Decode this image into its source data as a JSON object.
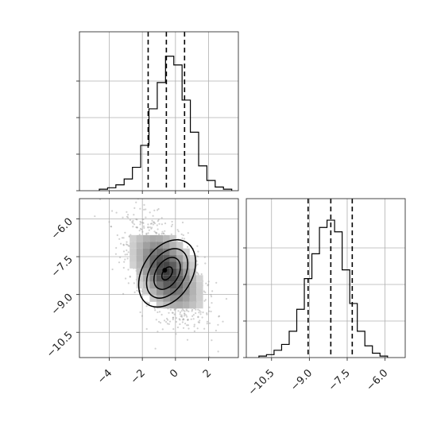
{
  "colors": {
    "line": "#000000",
    "grid": "#b0b0b0",
    "points": "#9a9a9a",
    "density_light": "#d6d6d6",
    "density_mid": "#9c9c9c",
    "density_dark": "#4a4a4a"
  },
  "chart_data": [
    {
      "type": "histogram",
      "panel": "top-left",
      "variable": "x",
      "xlim": [
        -5.8,
        3.8
      ],
      "ylim": [
        0,
        1
      ],
      "bin_edges": [
        -4.6,
        -4.1,
        -3.6,
        -3.1,
        -2.6,
        -2.1,
        -1.6,
        -1.1,
        -0.6,
        -0.1,
        0.4,
        0.9,
        1.4,
        1.9,
        2.4,
        2.9,
        3.4
      ],
      "counts": [
        0.01,
        0.02,
        0.04,
        0.08,
        0.16,
        0.31,
        0.56,
        0.74,
        0.92,
        0.86,
        0.62,
        0.4,
        0.17,
        0.07,
        0.025,
        0.01
      ],
      "quantile_lines": [
        -1.65,
        -0.55,
        0.55
      ],
      "xticks": [
        -4,
        -2,
        0,
        2
      ],
      "grid": true
    },
    {
      "type": "scatter-density",
      "panel": "bottom-left",
      "variables": [
        "x",
        "y"
      ],
      "xlim": [
        -5.8,
        3.8
      ],
      "ylim": [
        -11.5,
        -5.2
      ],
      "center": [
        -0.55,
        -8.1
      ],
      "spread": [
        1.15,
        1.0
      ],
      "correlation": -0.55,
      "xticks": [
        -4,
        -2,
        0,
        2
      ],
      "xtick_labels": [
        "−4",
        "−2",
        "0",
        "2"
      ],
      "yticks": [
        -6.0,
        -7.5,
        -9.0,
        -10.5
      ],
      "ytick_labels": [
        "−6.0",
        "−7.5",
        "−9.0",
        "−10.5"
      ],
      "contour_levels": [
        "0.5-sigma",
        "1-sigma",
        "1.5-sigma",
        "2-sigma"
      ],
      "grid": true
    },
    {
      "type": "histogram",
      "panel": "bottom-right",
      "variable": "y",
      "xlim": [
        -11.5,
        -5.2
      ],
      "ylim": [
        0,
        1
      ],
      "bin_edges": [
        -11.0,
        -10.7,
        -10.4,
        -10.1,
        -9.8,
        -9.5,
        -9.2,
        -8.9,
        -8.6,
        -8.3,
        -8.0,
        -7.7,
        -7.4,
        -7.1,
        -6.8,
        -6.5,
        -6.2,
        -5.9
      ],
      "counts": [
        0.01,
        0.02,
        0.05,
        0.09,
        0.18,
        0.33,
        0.54,
        0.71,
        0.89,
        0.94,
        0.86,
        0.6,
        0.37,
        0.18,
        0.08,
        0.03,
        0.01
      ],
      "quantile_lines": [
        -9.05,
        -8.15,
        -7.3
      ],
      "xticks": [
        -10.5,
        -9.0,
        -7.5,
        -6.0
      ],
      "xtick_labels": [
        "−10.5",
        "−9.0",
        "−7.5",
        "−6.0"
      ],
      "grid": true
    }
  ]
}
